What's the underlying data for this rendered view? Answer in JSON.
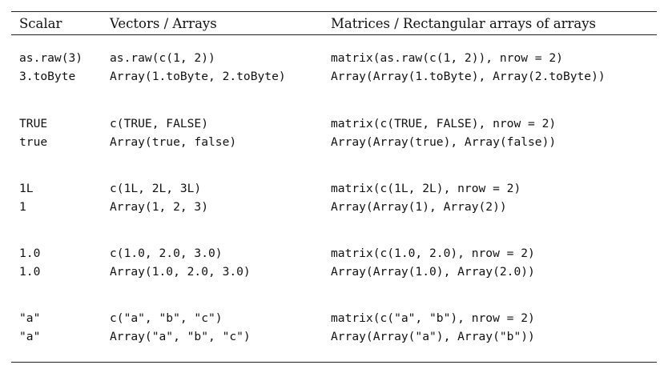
{
  "headers": [
    "Scalar",
    "Vectors / Arrays",
    "Matrices / Rectangular arrays of arrays"
  ],
  "groups": [
    [
      [
        "as.raw(3)",
        "as.raw(c(1, 2))",
        "matrix(as.raw(c(1, 2)), nrow = 2)"
      ],
      [
        "3.toByte",
        "Array(1.toByte, 2.toByte)",
        "Array(Array(1.toByte), Array(2.toByte))"
      ]
    ],
    [
      [
        "TRUE",
        "c(TRUE, FALSE)",
        "matrix(c(TRUE, FALSE), nrow = 2)"
      ],
      [
        "true",
        "Array(true, false)",
        "Array(Array(true), Array(false))"
      ]
    ],
    [
      [
        "1L",
        "c(1L, 2L, 3L)",
        "matrix(c(1L, 2L), nrow = 2)"
      ],
      [
        "1",
        "Array(1, 2, 3)",
        "Array(Array(1), Array(2))"
      ]
    ],
    [
      [
        "1.0",
        "c(1.0, 2.0, 3.0)",
        "matrix(c(1.0, 2.0), nrow = 2)"
      ],
      [
        "1.0",
        "Array(1.0, 2.0, 3.0)",
        "Array(Array(1.0), Array(2.0))"
      ]
    ],
    [
      [
        "\"a\"",
        "c(\"a\", \"b\", \"c\")",
        "matrix(c(\"a\", \"b\"), nrow = 2)"
      ],
      [
        "\"a\"",
        "Array(\"a\", \"b\", \"c\")",
        "Array(Array(\"a\"), Array(\"b\"))"
      ]
    ]
  ]
}
